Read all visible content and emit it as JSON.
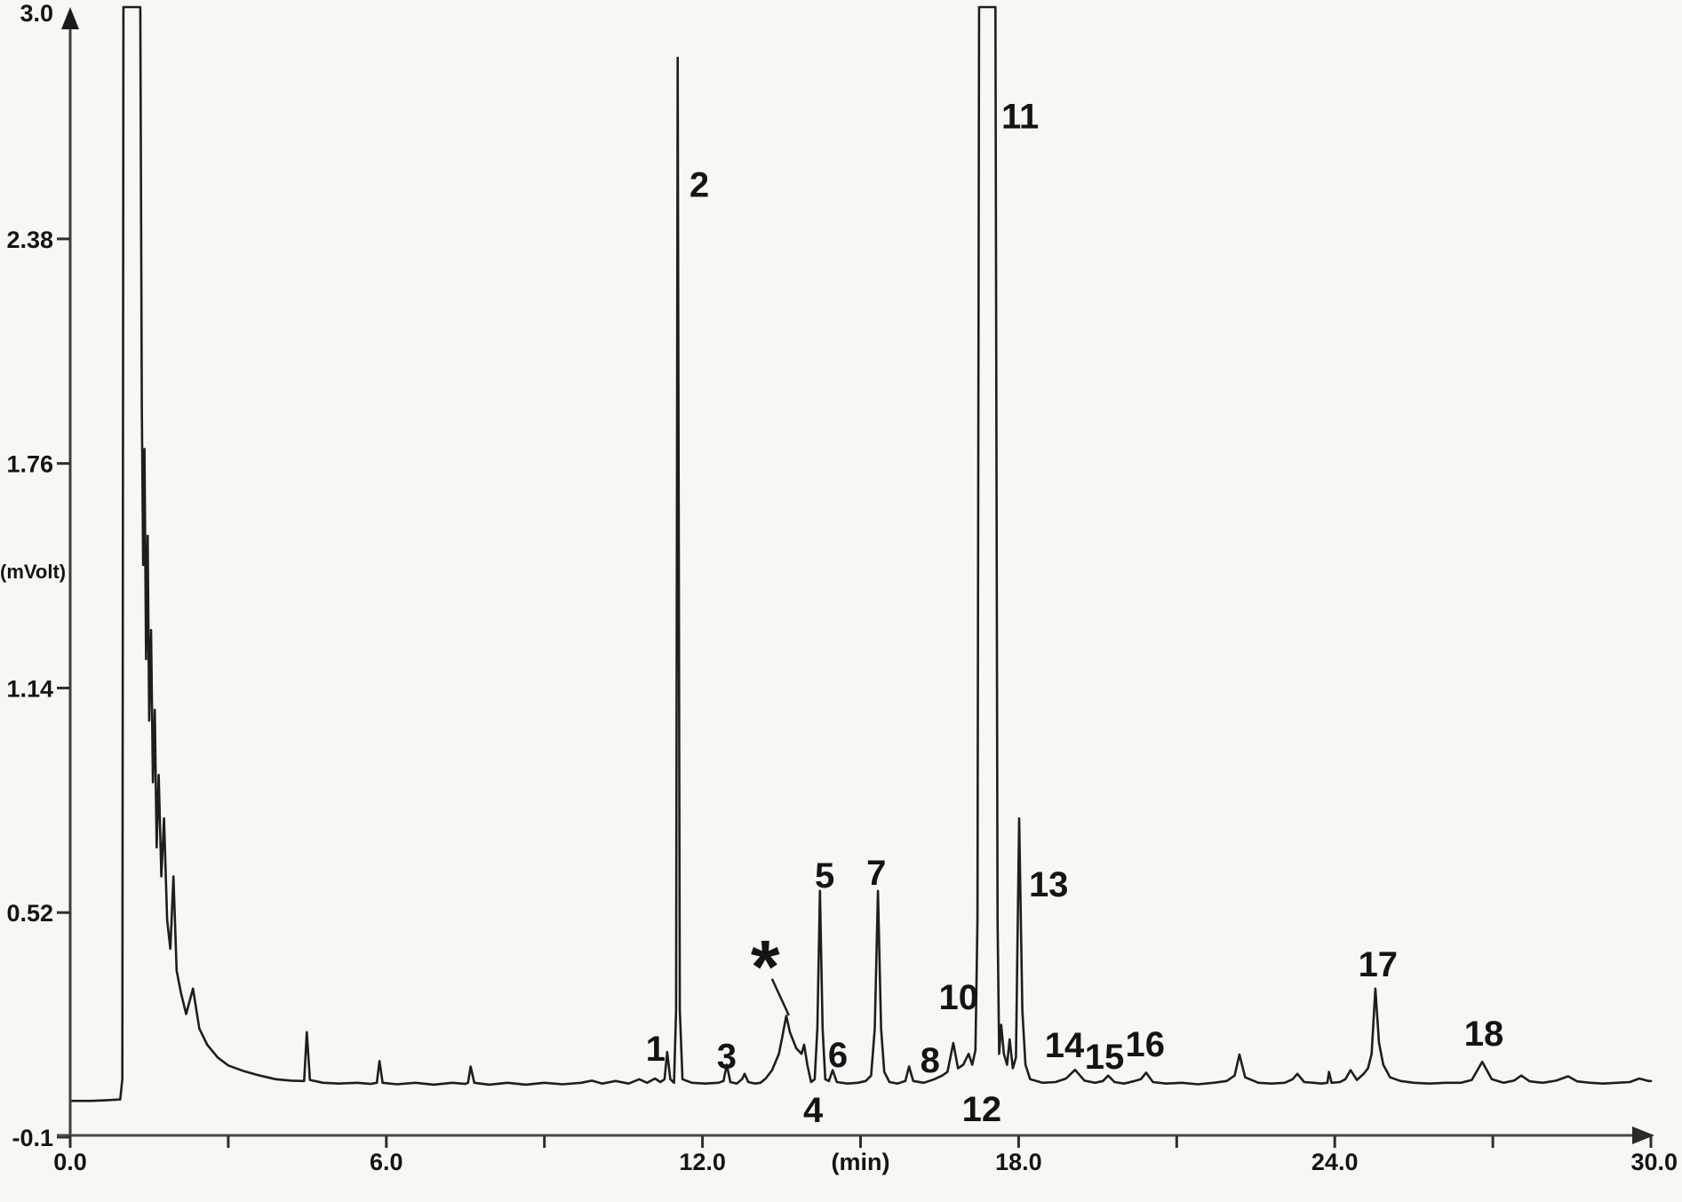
{
  "page": {
    "background_color": "#f8f7f4",
    "trace_color": "#1e1e1e",
    "axis_color": "#4a4a4a"
  },
  "chart_data": {
    "type": "line",
    "xlabel": "(min)",
    "ylabel": "(mVolt)",
    "xlim": [
      0,
      30
    ],
    "ylim": [
      -0.1,
      3.0
    ],
    "grid": false,
    "legend": "none",
    "clip_level_mV": 3.02,
    "x_ticks": [
      {
        "v": 0,
        "label": "0.0"
      },
      {
        "v": 3,
        "label": ""
      },
      {
        "v": 6,
        "label": "6.0"
      },
      {
        "v": 9,
        "label": ""
      },
      {
        "v": 12,
        "label": "12.0"
      },
      {
        "v": 15,
        "label": "(min)"
      },
      {
        "v": 18,
        "label": "18.0"
      },
      {
        "v": 21,
        "label": ""
      },
      {
        "v": 24,
        "label": "24.0"
      },
      {
        "v": 27,
        "label": ""
      },
      {
        "v": 30,
        "label": "30.0"
      }
    ],
    "y_ticks": [
      {
        "v": 3.0,
        "label": "3.0"
      },
      {
        "v": 2.38,
        "label": "2.38"
      },
      {
        "v": 1.76,
        "label": "1.76"
      },
      {
        "v": 1.14,
        "label": "1.14"
      },
      {
        "v": 0.52,
        "label": "0.52"
      },
      {
        "v": -0.1,
        "label": "-0.1"
      }
    ],
    "peaks": [
      {
        "label": "1",
        "rt_min": 11.33,
        "height_mV": 0.135,
        "label_pos": {
          "t": 11.11,
          "mV": 0.145
        }
      },
      {
        "label": "2",
        "rt_min": 11.53,
        "height_mV": 2.88,
        "label_pos": {
          "t": 11.94,
          "mV": 2.53
        }
      },
      {
        "label": "3",
        "rt_min": 12.46,
        "height_mV": 0.1,
        "label_pos": {
          "t": 12.46,
          "mV": 0.125
        }
      },
      {
        "label": "*",
        "rt_min": 13.59,
        "height_mV": 0.235,
        "label_pos": {
          "t": 13.19,
          "mV": 0.408
        }
      },
      {
        "label": "4",
        "rt_min": 13.93,
        "height_mV": 0.155,
        "label_pos": {
          "t": 14.1,
          "mV": -0.024
        }
      },
      {
        "label": "5",
        "rt_min": 14.23,
        "height_mV": 0.58,
        "label_pos": {
          "t": 14.32,
          "mV": 0.624
        }
      },
      {
        "label": "6",
        "rt_min": 14.47,
        "height_mV": 0.085,
        "label_pos": {
          "t": 14.57,
          "mV": 0.128
        }
      },
      {
        "label": "7",
        "rt_min": 15.33,
        "height_mV": 0.58,
        "label_pos": {
          "t": 15.3,
          "mV": 0.631
        }
      },
      {
        "label": "8",
        "rt_min": 15.92,
        "height_mV": 0.095,
        "label_pos": {
          "t": 16.32,
          "mV": 0.113
        }
      },
      {
        "label": "10",
        "rt_min": 16.76,
        "height_mV": 0.16,
        "label_pos": {
          "t": 16.86,
          "mV": 0.287
        }
      },
      {
        "label": "11",
        "rt_min": 17.4,
        "height_mV": 3.02,
        "off_scale": true,
        "label_pos": {
          "t": 18.03,
          "mV": 2.72
        }
      },
      {
        "label": "12",
        "rt_min": 17.67,
        "height_mV": 0.21,
        "label_pos": {
          "t": 17.3,
          "mV": -0.021
        }
      },
      {
        "label": "13",
        "rt_min": 18.01,
        "height_mV": 0.78,
        "label_pos": {
          "t": 18.57,
          "mV": 0.599
        }
      },
      {
        "label": "14",
        "rt_min": 19.07,
        "height_mV": 0.086,
        "label_pos": {
          "t": 18.87,
          "mV": 0.155
        }
      },
      {
        "label": "15",
        "rt_min": 19.7,
        "height_mV": 0.07,
        "label_pos": {
          "t": 19.63,
          "mV": 0.123
        }
      },
      {
        "label": "16",
        "rt_min": 20.42,
        "height_mV": 0.078,
        "label_pos": {
          "t": 20.4,
          "mV": 0.158
        }
      },
      {
        "label": "17",
        "rt_min": 24.77,
        "height_mV": 0.31,
        "label_pos": {
          "t": 24.82,
          "mV": 0.378
        }
      },
      {
        "label": "18",
        "rt_min": 26.8,
        "height_mV": 0.108,
        "label_pos": {
          "t": 26.83,
          "mV": 0.187
        }
      }
    ],
    "unlabeled_features": [
      {
        "name": "solvent-front",
        "rt_min": 1.2,
        "height_mV": 3.02,
        "off_scale": true
      },
      {
        "name": "small-peak",
        "rt_min": 4.49,
        "height_mV": 0.19
      },
      {
        "name": "small-peak",
        "rt_min": 5.87,
        "height_mV": 0.11
      },
      {
        "name": "small-peak",
        "rt_min": 7.6,
        "height_mV": 0.095
      },
      {
        "name": "small-peak",
        "rt_min": 22.19,
        "height_mV": 0.128
      },
      {
        "name": "small-peak",
        "rt_min": 23.29,
        "height_mV": 0.075
      },
      {
        "name": "small-peak",
        "rt_min": 24.3,
        "height_mV": 0.085
      },
      {
        "name": "small-peak",
        "rt_min": 27.54,
        "height_mV": 0.07
      },
      {
        "name": "small-peak",
        "rt_min": 28.43,
        "height_mV": 0.068
      }
    ],
    "annotations": [
      {
        "name": "star-leader-line",
        "from": {
          "t": 13.32,
          "mV": 0.337
        },
        "to": {
          "t": 13.64,
          "mV": 0.236
        }
      }
    ],
    "trace": [
      [
        0,
        0.0
      ],
      [
        0.4,
        0.0
      ],
      [
        0.7,
        0.002
      ],
      [
        0.95,
        0.004
      ],
      [
        0.99,
        0.06
      ],
      [
        1.01,
        3.02
      ],
      [
        1.33,
        3.02
      ],
      [
        1.36,
        1.92
      ],
      [
        1.385,
        1.48
      ],
      [
        1.41,
        1.8
      ],
      [
        1.44,
        1.22
      ],
      [
        1.47,
        1.56
      ],
      [
        1.5,
        1.05
      ],
      [
        1.535,
        1.3
      ],
      [
        1.57,
        0.88
      ],
      [
        1.605,
        1.08
      ],
      [
        1.64,
        0.7
      ],
      [
        1.68,
        0.9
      ],
      [
        1.73,
        0.62
      ],
      [
        1.78,
        0.78
      ],
      [
        1.84,
        0.5
      ],
      [
        1.9,
        0.42
      ],
      [
        1.96,
        0.62
      ],
      [
        2.02,
        0.36
      ],
      [
        2.1,
        0.3
      ],
      [
        2.2,
        0.24
      ],
      [
        2.33,
        0.31
      ],
      [
        2.45,
        0.2
      ],
      [
        2.6,
        0.155
      ],
      [
        2.8,
        0.12
      ],
      [
        3.0,
        0.098
      ],
      [
        3.3,
        0.082
      ],
      [
        3.6,
        0.07
      ],
      [
        3.9,
        0.06
      ],
      [
        4.2,
        0.056
      ],
      [
        4.44,
        0.055
      ],
      [
        4.49,
        0.19
      ],
      [
        4.55,
        0.058
      ],
      [
        4.8,
        0.05
      ],
      [
        5.1,
        0.048
      ],
      [
        5.45,
        0.05
      ],
      [
        5.7,
        0.047
      ],
      [
        5.82,
        0.05
      ],
      [
        5.87,
        0.11
      ],
      [
        5.93,
        0.05
      ],
      [
        6.2,
        0.046
      ],
      [
        6.55,
        0.05
      ],
      [
        6.9,
        0.045
      ],
      [
        7.25,
        0.05
      ],
      [
        7.5,
        0.047
      ],
      [
        7.55,
        0.05
      ],
      [
        7.6,
        0.095
      ],
      [
        7.67,
        0.05
      ],
      [
        7.95,
        0.045
      ],
      [
        8.3,
        0.05
      ],
      [
        8.65,
        0.045
      ],
      [
        9.0,
        0.05
      ],
      [
        9.35,
        0.046
      ],
      [
        9.7,
        0.05
      ],
      [
        9.9,
        0.056
      ],
      [
        10.1,
        0.048
      ],
      [
        10.35,
        0.055
      ],
      [
        10.6,
        0.048
      ],
      [
        10.8,
        0.06
      ],
      [
        10.95,
        0.05
      ],
      [
        11.1,
        0.062
      ],
      [
        11.2,
        0.052
      ],
      [
        11.28,
        0.06
      ],
      [
        11.33,
        0.135
      ],
      [
        11.39,
        0.06
      ],
      [
        11.46,
        0.05
      ],
      [
        11.5,
        0.25
      ],
      [
        11.53,
        2.88
      ],
      [
        11.57,
        0.25
      ],
      [
        11.62,
        0.06
      ],
      [
        11.8,
        0.05
      ],
      [
        12.05,
        0.048
      ],
      [
        12.3,
        0.05
      ],
      [
        12.4,
        0.055
      ],
      [
        12.46,
        0.1
      ],
      [
        12.53,
        0.052
      ],
      [
        12.65,
        0.048
      ],
      [
        12.75,
        0.06
      ],
      [
        12.8,
        0.075
      ],
      [
        12.87,
        0.052
      ],
      [
        13.0,
        0.048
      ],
      [
        13.1,
        0.05
      ],
      [
        13.2,
        0.062
      ],
      [
        13.32,
        0.085
      ],
      [
        13.45,
        0.13
      ],
      [
        13.52,
        0.18
      ],
      [
        13.59,
        0.235
      ],
      [
        13.66,
        0.19
      ],
      [
        13.78,
        0.145
      ],
      [
        13.88,
        0.13
      ],
      [
        13.93,
        0.155
      ],
      [
        13.99,
        0.1
      ],
      [
        14.06,
        0.052
      ],
      [
        14.13,
        0.06
      ],
      [
        14.18,
        0.2
      ],
      [
        14.23,
        0.58
      ],
      [
        14.28,
        0.2
      ],
      [
        14.33,
        0.06
      ],
      [
        14.4,
        0.055
      ],
      [
        14.47,
        0.085
      ],
      [
        14.55,
        0.052
      ],
      [
        14.75,
        0.048
      ],
      [
        14.95,
        0.05
      ],
      [
        15.1,
        0.055
      ],
      [
        15.2,
        0.07
      ],
      [
        15.27,
        0.2
      ],
      [
        15.33,
        0.58
      ],
      [
        15.39,
        0.2
      ],
      [
        15.45,
        0.08
      ],
      [
        15.55,
        0.052
      ],
      [
        15.7,
        0.048
      ],
      [
        15.85,
        0.055
      ],
      [
        15.92,
        0.095
      ],
      [
        16.0,
        0.055
      ],
      [
        16.2,
        0.05
      ],
      [
        16.4,
        0.06
      ],
      [
        16.55,
        0.07
      ],
      [
        16.65,
        0.08
      ],
      [
        16.76,
        0.16
      ],
      [
        16.85,
        0.09
      ],
      [
        16.95,
        0.1
      ],
      [
        17.05,
        0.13
      ],
      [
        17.12,
        0.1
      ],
      [
        17.18,
        0.14
      ],
      [
        17.22,
        0.5
      ],
      [
        17.25,
        3.02
      ],
      [
        17.56,
        3.02
      ],
      [
        17.6,
        0.5
      ],
      [
        17.63,
        0.13
      ],
      [
        17.67,
        0.21
      ],
      [
        17.72,
        0.13
      ],
      [
        17.78,
        0.1
      ],
      [
        17.83,
        0.17
      ],
      [
        17.89,
        0.09
      ],
      [
        17.95,
        0.12
      ],
      [
        18.01,
        0.78
      ],
      [
        18.07,
        0.25
      ],
      [
        18.13,
        0.1
      ],
      [
        18.22,
        0.06
      ],
      [
        18.45,
        0.05
      ],
      [
        18.7,
        0.052
      ],
      [
        18.9,
        0.062
      ],
      [
        19.07,
        0.086
      ],
      [
        19.25,
        0.056
      ],
      [
        19.45,
        0.05
      ],
      [
        19.6,
        0.055
      ],
      [
        19.7,
        0.07
      ],
      [
        19.82,
        0.052
      ],
      [
        20.0,
        0.048
      ],
      [
        20.2,
        0.055
      ],
      [
        20.32,
        0.06
      ],
      [
        20.42,
        0.078
      ],
      [
        20.55,
        0.052
      ],
      [
        20.8,
        0.048
      ],
      [
        21.1,
        0.05
      ],
      [
        21.4,
        0.046
      ],
      [
        21.7,
        0.05
      ],
      [
        21.95,
        0.055
      ],
      [
        22.1,
        0.07
      ],
      [
        22.19,
        0.128
      ],
      [
        22.3,
        0.065
      ],
      [
        22.55,
        0.05
      ],
      [
        22.8,
        0.048
      ],
      [
        23.05,
        0.05
      ],
      [
        23.2,
        0.06
      ],
      [
        23.29,
        0.075
      ],
      [
        23.42,
        0.052
      ],
      [
        23.6,
        0.05
      ],
      [
        23.75,
        0.048
      ],
      [
        23.86,
        0.05
      ],
      [
        23.89,
        0.08
      ],
      [
        23.94,
        0.05
      ],
      [
        24.1,
        0.052
      ],
      [
        24.2,
        0.06
      ],
      [
        24.3,
        0.085
      ],
      [
        24.42,
        0.058
      ],
      [
        24.55,
        0.075
      ],
      [
        24.63,
        0.09
      ],
      [
        24.7,
        0.13
      ],
      [
        24.77,
        0.31
      ],
      [
        24.84,
        0.16
      ],
      [
        24.92,
        0.1
      ],
      [
        25.05,
        0.065
      ],
      [
        25.25,
        0.055
      ],
      [
        25.5,
        0.05
      ],
      [
        25.8,
        0.048
      ],
      [
        26.1,
        0.05
      ],
      [
        26.4,
        0.05
      ],
      [
        26.6,
        0.058
      ],
      [
        26.8,
        0.108
      ],
      [
        26.98,
        0.06
      ],
      [
        27.2,
        0.05
      ],
      [
        27.4,
        0.056
      ],
      [
        27.54,
        0.07
      ],
      [
        27.7,
        0.054
      ],
      [
        27.95,
        0.05
      ],
      [
        28.2,
        0.056
      ],
      [
        28.43,
        0.068
      ],
      [
        28.6,
        0.054
      ],
      [
        28.85,
        0.05
      ],
      [
        29.1,
        0.048
      ],
      [
        29.35,
        0.05
      ],
      [
        29.6,
        0.052
      ],
      [
        29.78,
        0.062
      ],
      [
        29.95,
        0.055
      ],
      [
        30.0,
        0.055
      ]
    ]
  }
}
